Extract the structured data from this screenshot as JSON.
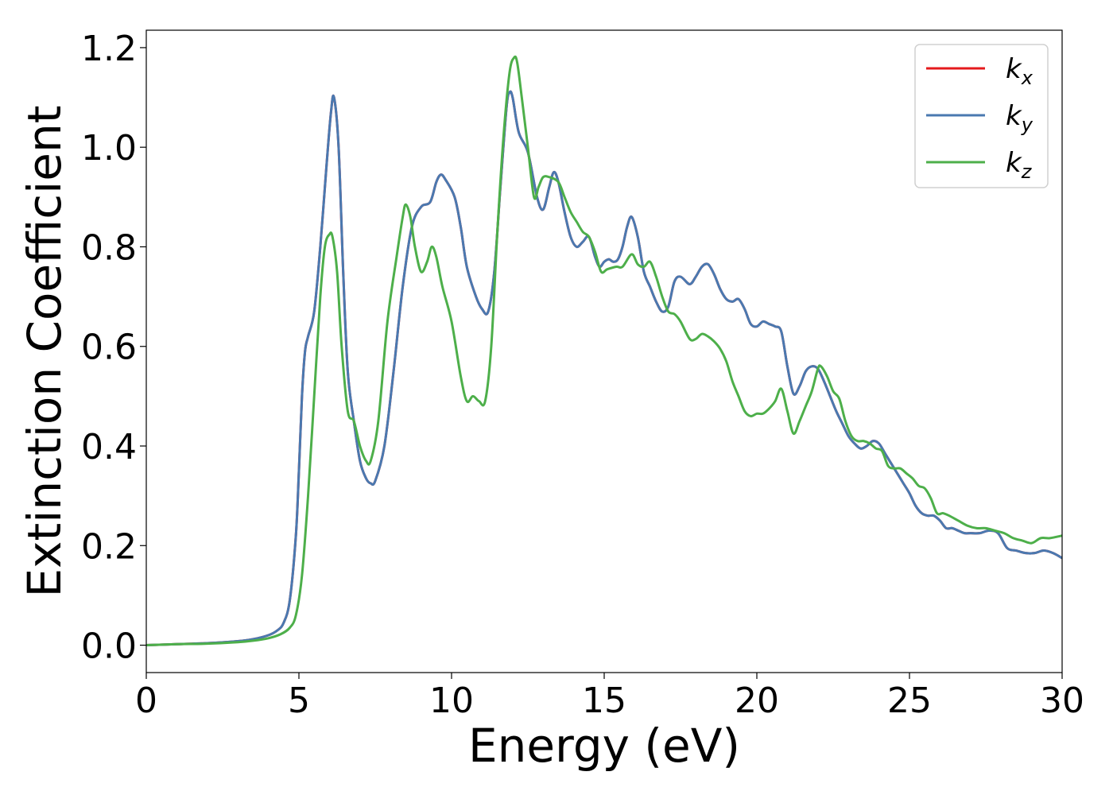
{
  "chart_data": {
    "type": "line",
    "title": "",
    "xlabel": "Energy (eV)",
    "ylabel": "Extinction Coefficient",
    "xlim": [
      0,
      30
    ],
    "ylim": [
      -0.055,
      1.235
    ],
    "xticks": [
      0,
      5,
      10,
      15,
      20,
      25,
      30
    ],
    "xtick_labels": [
      "0",
      "5",
      "10",
      "15",
      "20",
      "25",
      "30"
    ],
    "yticks": [
      0.0,
      0.2,
      0.4,
      0.6,
      0.8,
      1.0,
      1.2
    ],
    "ytick_labels": [
      "0.0",
      "0.2",
      "0.4",
      "0.6",
      "0.8",
      "1.0",
      "1.2"
    ],
    "grid": false,
    "legend_position": "top-right",
    "series": [
      {
        "name": "kx",
        "legend_base": "k",
        "legend_sub": "x",
        "color": "#e41a1c",
        "x": [
          0,
          1,
          2,
          3,
          3.5,
          4,
          4.3,
          4.5,
          4.7,
          4.9,
          5.0,
          5.1,
          5.2,
          5.3,
          5.5,
          5.7,
          5.9,
          6.05,
          6.15,
          6.3,
          6.45,
          6.6,
          6.8,
          7.0,
          7.2,
          7.35,
          7.5,
          7.8,
          8.1,
          8.4,
          8.7,
          9.0,
          9.3,
          9.5,
          9.65,
          9.8,
          10.1,
          10.3,
          10.5,
          10.8,
          11.0,
          11.2,
          11.4,
          11.6,
          11.8,
          11.9,
          12.0,
          12.2,
          12.5,
          12.8,
          13.0,
          13.2,
          13.35,
          13.5,
          13.7,
          13.9,
          14.1,
          14.3,
          14.5,
          14.7,
          14.85,
          15.0,
          15.15,
          15.3,
          15.45,
          15.6,
          15.75,
          15.9,
          16.1,
          16.3,
          16.5,
          16.7,
          16.9,
          17.1,
          17.3,
          17.5,
          17.8,
          18.0,
          18.2,
          18.4,
          18.6,
          18.8,
          19.0,
          19.2,
          19.4,
          19.6,
          19.8,
          20.0,
          20.2,
          20.4,
          20.6,
          20.8,
          21.0,
          21.2,
          21.4,
          21.6,
          21.8,
          22.0,
          22.2,
          22.4,
          22.6,
          22.8,
          23.0,
          23.2,
          23.4,
          23.6,
          23.8,
          24.0,
          24.2,
          24.4,
          24.6,
          24.8,
          25.0,
          25.2,
          25.4,
          25.6,
          25.8,
          26.0,
          26.2,
          26.4,
          26.6,
          26.8,
          27.0,
          27.3,
          27.6,
          27.9,
          28.2,
          28.5,
          28.8,
          29.1,
          29.4,
          29.7,
          30.0
        ],
        "y": [
          0.0,
          0.002,
          0.004,
          0.008,
          0.012,
          0.02,
          0.03,
          0.045,
          0.09,
          0.22,
          0.35,
          0.5,
          0.59,
          0.62,
          0.67,
          0.8,
          0.96,
          1.07,
          1.1,
          1.0,
          0.75,
          0.55,
          0.45,
          0.37,
          0.335,
          0.325,
          0.33,
          0.4,
          0.55,
          0.72,
          0.84,
          0.88,
          0.89,
          0.93,
          0.945,
          0.935,
          0.9,
          0.84,
          0.76,
          0.7,
          0.675,
          0.67,
          0.75,
          0.92,
          1.08,
          1.11,
          1.1,
          1.03,
          0.99,
          0.9,
          0.875,
          0.92,
          0.95,
          0.93,
          0.87,
          0.82,
          0.8,
          0.81,
          0.82,
          0.78,
          0.76,
          0.77,
          0.775,
          0.77,
          0.775,
          0.8,
          0.84,
          0.86,
          0.82,
          0.75,
          0.72,
          0.69,
          0.67,
          0.68,
          0.73,
          0.74,
          0.725,
          0.74,
          0.76,
          0.765,
          0.745,
          0.715,
          0.695,
          0.69,
          0.695,
          0.675,
          0.645,
          0.64,
          0.65,
          0.645,
          0.64,
          0.63,
          0.56,
          0.505,
          0.52,
          0.55,
          0.56,
          0.555,
          0.53,
          0.5,
          0.47,
          0.445,
          0.42,
          0.405,
          0.395,
          0.4,
          0.41,
          0.405,
          0.385,
          0.365,
          0.345,
          0.325,
          0.305,
          0.28,
          0.265,
          0.26,
          0.26,
          0.25,
          0.235,
          0.235,
          0.23,
          0.225,
          0.225,
          0.225,
          0.23,
          0.225,
          0.195,
          0.19,
          0.185,
          0.185,
          0.19,
          0.185,
          0.175
        ]
      },
      {
        "name": "ky",
        "legend_base": "k",
        "legend_sub": "y",
        "color": "#4a79b0",
        "x": [
          0,
          1,
          2,
          3,
          3.5,
          4,
          4.3,
          4.5,
          4.7,
          4.9,
          5.0,
          5.1,
          5.2,
          5.3,
          5.5,
          5.7,
          5.9,
          6.05,
          6.15,
          6.3,
          6.45,
          6.6,
          6.8,
          7.0,
          7.2,
          7.35,
          7.5,
          7.8,
          8.1,
          8.4,
          8.7,
          9.0,
          9.3,
          9.5,
          9.65,
          9.8,
          10.1,
          10.3,
          10.5,
          10.8,
          11.0,
          11.2,
          11.4,
          11.6,
          11.8,
          11.9,
          12.0,
          12.2,
          12.5,
          12.8,
          13.0,
          13.2,
          13.35,
          13.5,
          13.7,
          13.9,
          14.1,
          14.3,
          14.5,
          14.7,
          14.85,
          15.0,
          15.15,
          15.3,
          15.45,
          15.6,
          15.75,
          15.9,
          16.1,
          16.3,
          16.5,
          16.7,
          16.9,
          17.1,
          17.3,
          17.5,
          17.8,
          18.0,
          18.2,
          18.4,
          18.6,
          18.8,
          19.0,
          19.2,
          19.4,
          19.6,
          19.8,
          20.0,
          20.2,
          20.4,
          20.6,
          20.8,
          21.0,
          21.2,
          21.4,
          21.6,
          21.8,
          22.0,
          22.2,
          22.4,
          22.6,
          22.8,
          23.0,
          23.2,
          23.4,
          23.6,
          23.8,
          24.0,
          24.2,
          24.4,
          24.6,
          24.8,
          25.0,
          25.2,
          25.4,
          25.6,
          25.8,
          26.0,
          26.2,
          26.4,
          26.6,
          26.8,
          27.0,
          27.3,
          27.6,
          27.9,
          28.2,
          28.5,
          28.8,
          29.1,
          29.4,
          29.7,
          30.0
        ],
        "y": [
          0.0,
          0.002,
          0.004,
          0.008,
          0.012,
          0.02,
          0.03,
          0.045,
          0.09,
          0.22,
          0.35,
          0.5,
          0.59,
          0.62,
          0.67,
          0.8,
          0.96,
          1.07,
          1.1,
          1.0,
          0.75,
          0.55,
          0.45,
          0.37,
          0.335,
          0.325,
          0.33,
          0.4,
          0.55,
          0.72,
          0.84,
          0.88,
          0.89,
          0.93,
          0.945,
          0.935,
          0.9,
          0.84,
          0.76,
          0.7,
          0.675,
          0.67,
          0.75,
          0.92,
          1.08,
          1.11,
          1.1,
          1.03,
          0.99,
          0.9,
          0.875,
          0.92,
          0.95,
          0.93,
          0.87,
          0.82,
          0.8,
          0.81,
          0.82,
          0.78,
          0.76,
          0.77,
          0.775,
          0.77,
          0.775,
          0.8,
          0.84,
          0.86,
          0.82,
          0.75,
          0.72,
          0.69,
          0.67,
          0.68,
          0.73,
          0.74,
          0.725,
          0.74,
          0.76,
          0.765,
          0.745,
          0.715,
          0.695,
          0.69,
          0.695,
          0.675,
          0.645,
          0.64,
          0.65,
          0.645,
          0.64,
          0.63,
          0.56,
          0.505,
          0.52,
          0.55,
          0.56,
          0.555,
          0.53,
          0.5,
          0.47,
          0.445,
          0.42,
          0.405,
          0.395,
          0.4,
          0.41,
          0.405,
          0.385,
          0.365,
          0.345,
          0.325,
          0.305,
          0.28,
          0.265,
          0.26,
          0.26,
          0.25,
          0.235,
          0.235,
          0.23,
          0.225,
          0.225,
          0.225,
          0.23,
          0.225,
          0.195,
          0.19,
          0.185,
          0.185,
          0.19,
          0.185,
          0.175
        ]
      },
      {
        "name": "kz",
        "legend_base": "k",
        "legend_sub": "z",
        "color": "#4daf4a",
        "x": [
          0,
          1,
          2,
          3,
          3.5,
          4,
          4.4,
          4.7,
          4.9,
          5.1,
          5.3,
          5.5,
          5.7,
          5.85,
          6.0,
          6.1,
          6.25,
          6.4,
          6.6,
          6.8,
          7.0,
          7.2,
          7.35,
          7.6,
          7.9,
          8.2,
          8.4,
          8.5,
          8.65,
          8.8,
          9.0,
          9.2,
          9.35,
          9.5,
          9.7,
          10.0,
          10.3,
          10.5,
          10.7,
          10.9,
          11.1,
          11.3,
          11.5,
          11.7,
          11.9,
          12.05,
          12.15,
          12.3,
          12.5,
          12.7,
          12.85,
          13.0,
          13.2,
          13.5,
          13.7,
          13.9,
          14.1,
          14.3,
          14.5,
          14.7,
          14.9,
          15.1,
          15.4,
          15.6,
          15.9,
          16.1,
          16.3,
          16.5,
          16.7,
          16.9,
          17.1,
          17.3,
          17.5,
          17.8,
          18.0,
          18.2,
          18.4,
          18.6,
          18.8,
          19.0,
          19.2,
          19.4,
          19.6,
          19.8,
          20.0,
          20.2,
          20.4,
          20.6,
          20.8,
          21.0,
          21.2,
          21.4,
          21.6,
          21.8,
          22.0,
          22.1,
          22.3,
          22.5,
          22.7,
          22.9,
          23.1,
          23.3,
          23.5,
          23.7,
          23.9,
          24.1,
          24.3,
          24.5,
          24.7,
          24.9,
          25.1,
          25.3,
          25.5,
          25.7,
          25.9,
          26.1,
          26.3,
          26.6,
          26.9,
          27.2,
          27.5,
          27.8,
          28.1,
          28.4,
          28.7,
          29.0,
          29.3,
          29.6,
          30.0
        ],
        "y": [
          0.0,
          0.002,
          0.003,
          0.006,
          0.009,
          0.014,
          0.022,
          0.035,
          0.06,
          0.14,
          0.3,
          0.5,
          0.7,
          0.8,
          0.825,
          0.82,
          0.75,
          0.6,
          0.47,
          0.45,
          0.4,
          0.37,
          0.37,
          0.45,
          0.65,
          0.78,
          0.86,
          0.885,
          0.86,
          0.8,
          0.75,
          0.77,
          0.8,
          0.78,
          0.72,
          0.65,
          0.54,
          0.49,
          0.5,
          0.49,
          0.49,
          0.6,
          0.83,
          1.02,
          1.15,
          1.18,
          1.17,
          1.1,
          1.0,
          0.9,
          0.92,
          0.94,
          0.94,
          0.93,
          0.9,
          0.87,
          0.85,
          0.83,
          0.82,
          0.79,
          0.75,
          0.755,
          0.76,
          0.76,
          0.785,
          0.765,
          0.76,
          0.77,
          0.74,
          0.7,
          0.67,
          0.665,
          0.65,
          0.615,
          0.615,
          0.625,
          0.62,
          0.61,
          0.595,
          0.57,
          0.53,
          0.5,
          0.47,
          0.46,
          0.465,
          0.465,
          0.475,
          0.49,
          0.515,
          0.47,
          0.425,
          0.45,
          0.48,
          0.51,
          0.555,
          0.56,
          0.54,
          0.51,
          0.495,
          0.45,
          0.42,
          0.41,
          0.41,
          0.405,
          0.395,
          0.39,
          0.36,
          0.355,
          0.355,
          0.345,
          0.335,
          0.32,
          0.315,
          0.295,
          0.265,
          0.265,
          0.26,
          0.25,
          0.24,
          0.235,
          0.235,
          0.23,
          0.225,
          0.215,
          0.21,
          0.205,
          0.215,
          0.215,
          0.22
        ]
      }
    ]
  }
}
